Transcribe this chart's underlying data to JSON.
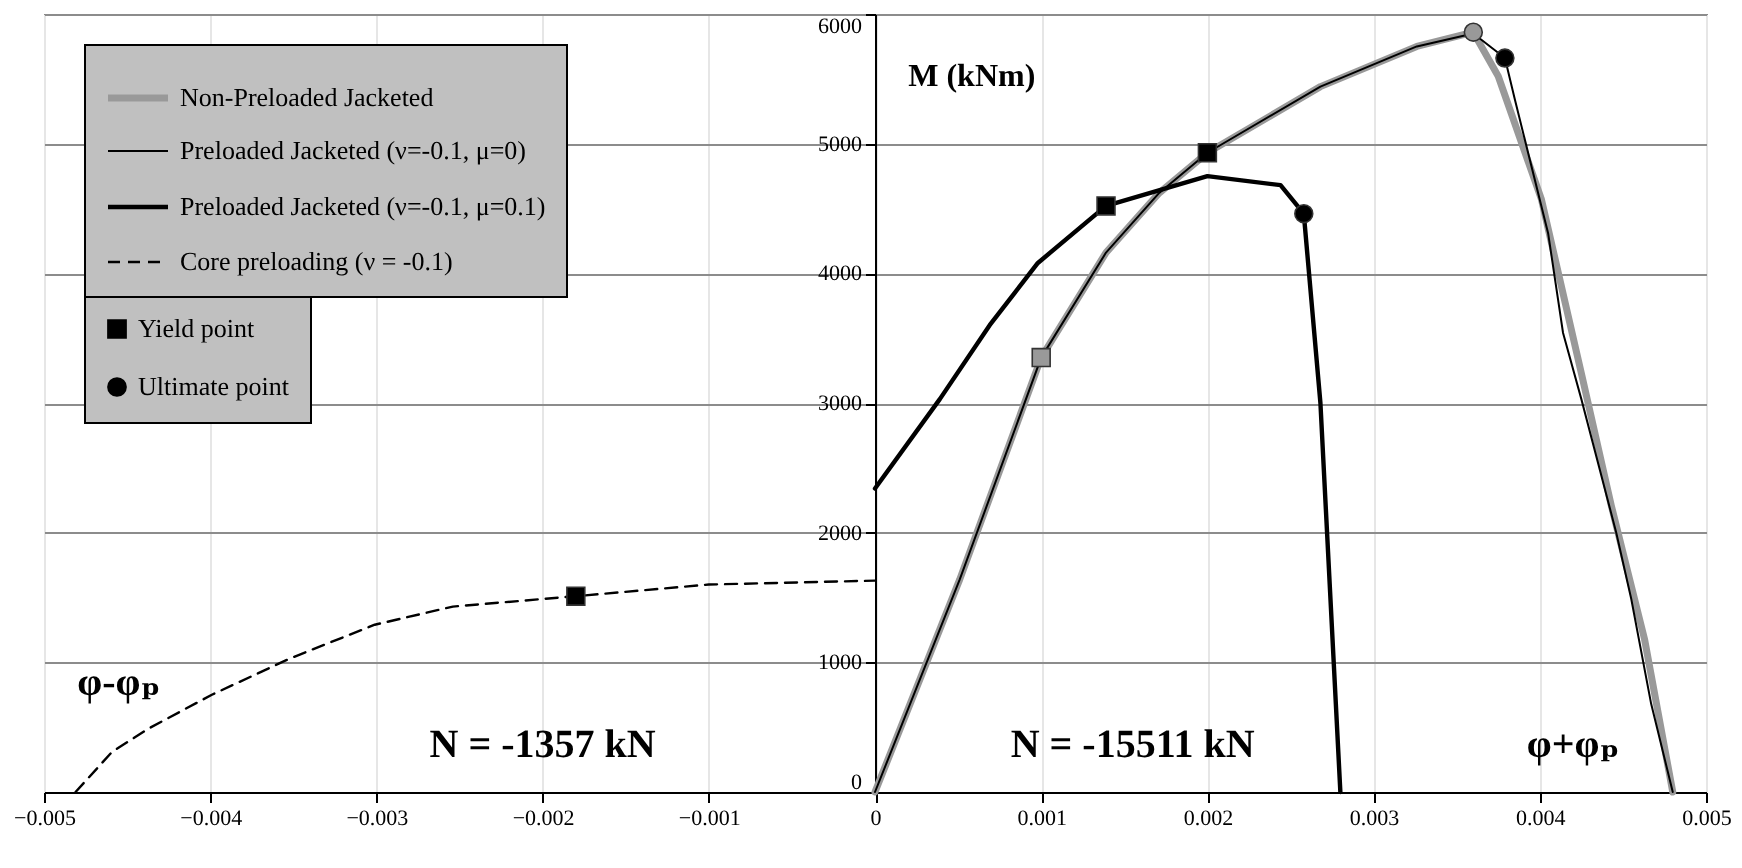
{
  "chart_data": {
    "type": "line",
    "ylabel": "M (kNm)",
    "xlim": [
      -0.005,
      0.005
    ],
    "xticks": [
      -0.005,
      -0.004,
      -0.003,
      -0.002,
      -0.001,
      0,
      0.001,
      0.002,
      0.003,
      0.004,
      0.005
    ],
    "ylim": [
      0,
      6000
    ],
    "yticks": [
      0,
      1000,
      2000,
      3000,
      4000,
      5000,
      6000
    ],
    "grid": true,
    "legend": "top left",
    "annotations": [
      "φ-φₚ",
      "N = -1357 kN",
      "N = -15511 kN",
      "φ+φₚ"
    ],
    "series": [
      {
        "name": "Non-Preloaded Jacketed",
        "color": "#999999",
        "line_style": "solid",
        "x": [
          0,
          0.00051,
          0.001,
          0.00139,
          0.00171,
          0.002,
          0.00268,
          0.00326,
          0.0036,
          0.00375,
          0.00401,
          0.00425,
          0.00443,
          0.00463,
          0.0048
        ],
        "values": [
          0,
          1640,
          3350,
          4160,
          4620,
          4930,
          5440,
          5750,
          5860,
          5520,
          4570,
          3230,
          2210,
          1180,
          0
        ]
      },
      {
        "name": "Preloaded Jacketed (ν=-0.1, μ=0)",
        "color": "#000000",
        "line_style": "solid",
        "x": [
          0,
          0.00051,
          0.001,
          0.00139,
          0.00171,
          0.002,
          0.00268,
          0.00326,
          0.0036,
          0.00379,
          0.00385,
          0.00405,
          0.00414,
          0.00425,
          0.00446,
          0.00455,
          0.00467,
          0.0048
        ],
        "values": [
          0,
          1640,
          3350,
          4160,
          4620,
          4930,
          5440,
          5750,
          5850,
          5660,
          5340,
          4310,
          3540,
          3030,
          2000,
          1490,
          680,
          0
        ]
      },
      {
        "name": "Preloaded Jacketed (ν=-0.1, μ=0.1)",
        "color": "#000000",
        "line_style": "solid",
        "x": [
          0,
          0.00039,
          0.00069,
          0.00098,
          0.00139,
          0.002,
          0.00244,
          0.00258,
          0.00268,
          0.0028
        ],
        "values": [
          2340,
          3030,
          3600,
          4080,
          4520,
          4750,
          4680,
          4460,
          3000,
          0
        ]
      },
      {
        "name": "Core preloading (ν = -0.1)",
        "color": "#000000",
        "line_style": "dashed",
        "x": [
          -0.00481,
          -0.00459,
          -0.00437,
          -0.00399,
          -0.00352,
          -0.00301,
          -0.00254,
          -0.0018,
          -0.001,
          0
        ],
        "values": [
          0,
          310,
          490,
          750,
          1030,
          1290,
          1430,
          1510,
          1600,
          1630
        ]
      },
      {
        "name": "Yield point",
        "type": "scatter",
        "marker": "square",
        "x": [
          0.001,
          0.002,
          0.00139,
          -0.0018
        ],
        "values": [
          3350,
          4930,
          4520,
          1510
        ],
        "colors": [
          "#999999",
          "#000000",
          "#000000",
          "#000000"
        ]
      },
      {
        "name": "Ultimate point",
        "type": "scatter",
        "marker": "circle",
        "x": [
          0.0036,
          0.00379,
          0.00258
        ],
        "values": [
          5860,
          5660,
          4460
        ],
        "colors": [
          "#999999",
          "#000000",
          "#000000"
        ]
      }
    ]
  }
}
